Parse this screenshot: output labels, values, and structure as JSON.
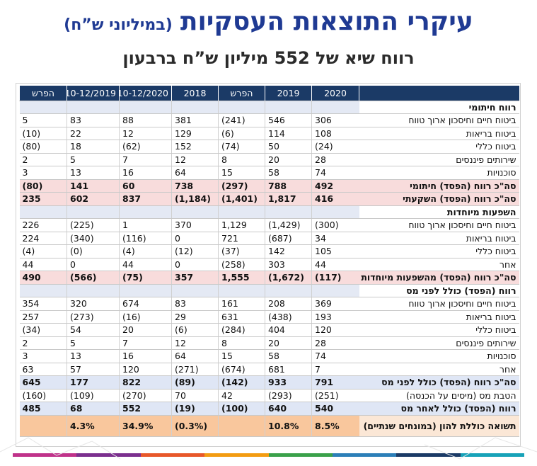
{
  "title": {
    "main": "עיקרי התוצאות העסקיות",
    "unit": "(במיליוני ש”ח)",
    "subtitle": "רווח שיא של 552 מיליון ש”ח ברבעון"
  },
  "table": {
    "headers": [
      "",
      "2020",
      "2019",
      "הפרש",
      "2018",
      "10-12/2020",
      "10-12/2019",
      "הפרש"
    ],
    "rows": [
      {
        "type": "section",
        "cells": [
          "רווח חיתומי",
          "",
          "",
          "",
          "",
          "",
          "",
          ""
        ]
      },
      {
        "type": "row",
        "cells": [
          "ביטוח חיים וחיסכון ארוך טווח",
          "306",
          "546",
          "(241)",
          "381",
          "88",
          "83",
          "5"
        ]
      },
      {
        "type": "row",
        "cells": [
          "ביטוח בריאות",
          "108",
          "114",
          "(6)",
          "129",
          "12",
          "22",
          "(10)"
        ]
      },
      {
        "type": "row",
        "cells": [
          "ביטוח כללי",
          "(24)",
          "50",
          "(74)",
          "152",
          "(62)",
          "18",
          "(80)"
        ]
      },
      {
        "type": "row",
        "cells": [
          "שירותים פיננסים",
          "28",
          "20",
          "8",
          "12",
          "7",
          "5",
          "2"
        ]
      },
      {
        "type": "row",
        "cells": [
          "סוכנויות",
          "74",
          "58",
          "15",
          "64",
          "16",
          "13",
          "3"
        ]
      },
      {
        "type": "total",
        "cells": [
          "סה\"כ רווח (הפסד) חיתומי",
          "492",
          "788",
          "(297)",
          "738",
          "60",
          "141",
          "(80)"
        ]
      },
      {
        "type": "total",
        "cells": [
          "סה\"כ רווח (הפסד) השקעתי",
          "416",
          "1,817",
          "(1,401)",
          "(1,184)",
          "837",
          "602",
          "235"
        ]
      },
      {
        "type": "section",
        "cells": [
          "השפעות מיוחדות",
          "",
          "",
          "",
          "",
          "",
          "",
          ""
        ]
      },
      {
        "type": "row",
        "cells": [
          "ביטוח חיים וחיסכון ארוך טווח",
          "(300)",
          "(1,429)",
          "1,129",
          "370",
          "1",
          "(225)",
          "226"
        ]
      },
      {
        "type": "row",
        "cells": [
          "ביטוח בריאות",
          "34",
          "(687)",
          "721",
          "0",
          "(116)",
          "(340)",
          "224"
        ]
      },
      {
        "type": "row",
        "cells": [
          "ביטוח כללי",
          "105",
          "142",
          "(37)",
          "(12)",
          "(4)",
          "(0)",
          "(4)"
        ]
      },
      {
        "type": "row",
        "cells": [
          "אחר",
          "44",
          "303",
          "(258)",
          "0",
          "44",
          "0",
          "44"
        ]
      },
      {
        "type": "total",
        "cells": [
          "סה\"כ רווח (הפסד) מהשפעות מיוחדות",
          "(117)",
          "(1,672)",
          "1,555",
          "357",
          "(75)",
          "(566)",
          "490"
        ]
      },
      {
        "type": "section",
        "cells": [
          "רווח (הפסד) כולל לפני מס",
          "",
          "",
          "",
          "",
          "",
          "",
          ""
        ]
      },
      {
        "type": "row",
        "cells": [
          "ביטוח חיים וחיסכון ארוך טווח",
          "369",
          "208",
          "161",
          "83",
          "674",
          "320",
          "354"
        ]
      },
      {
        "type": "row",
        "cells": [
          "ביטוח בריאות",
          "193",
          "(438)",
          "631",
          "29",
          "(16)",
          "(273)",
          "257"
        ]
      },
      {
        "type": "row",
        "cells": [
          "ביטוח כללי",
          "120",
          "404",
          "(284)",
          "(6)",
          "20",
          "54",
          "(34)"
        ]
      },
      {
        "type": "row",
        "cells": [
          "שירותים פיננסים",
          "28",
          "20",
          "8",
          "12",
          "7",
          "5",
          "2"
        ]
      },
      {
        "type": "row",
        "cells": [
          "סוכנויות",
          "74",
          "58",
          "15",
          "64",
          "16",
          "13",
          "3"
        ]
      },
      {
        "type": "row",
        "cells": [
          "אחר",
          "7",
          "681",
          "(674)",
          "(271)",
          "120",
          "57",
          "63"
        ]
      },
      {
        "type": "total2",
        "cells": [
          "סה\"כ רווח (הפסד) כולל לפני מס",
          "791",
          "933",
          "(142)",
          "(89)",
          "822",
          "177",
          "645"
        ]
      },
      {
        "type": "row",
        "cells": [
          "הטבת מס (מיסים על הכנסה)",
          "(251)",
          "(293)",
          "42",
          "70",
          "(270)",
          "(109)",
          "(160)"
        ]
      },
      {
        "type": "total2",
        "cells": [
          "רווח (הפסד) כולל לאחר מס",
          "540",
          "640",
          "(100)",
          "(19)",
          "552",
          "68",
          "485"
        ]
      },
      {
        "type": "roe",
        "cells": [
          "תשואה כוללת להון (במונחים שנתיים)",
          "8.5%",
          "10.8%",
          "",
          "(0.3%)",
          "34.9%",
          "4.3%",
          ""
        ]
      }
    ]
  },
  "colors": {
    "title": "#1f3a93",
    "header_bg": "#1b3a66",
    "section_bg": "#e4e9f4",
    "total_bg": "#f8dcdc",
    "total2_bg": "#dfe6f5",
    "roe_bg": "#f9c79d",
    "bottom_bar": [
      "#c0328a",
      "#7b2f8e",
      "#e8582a",
      "#f39c12",
      "#3aa14a",
      "#2c7fb8",
      "#1b3a66",
      "#17a2b8"
    ]
  }
}
